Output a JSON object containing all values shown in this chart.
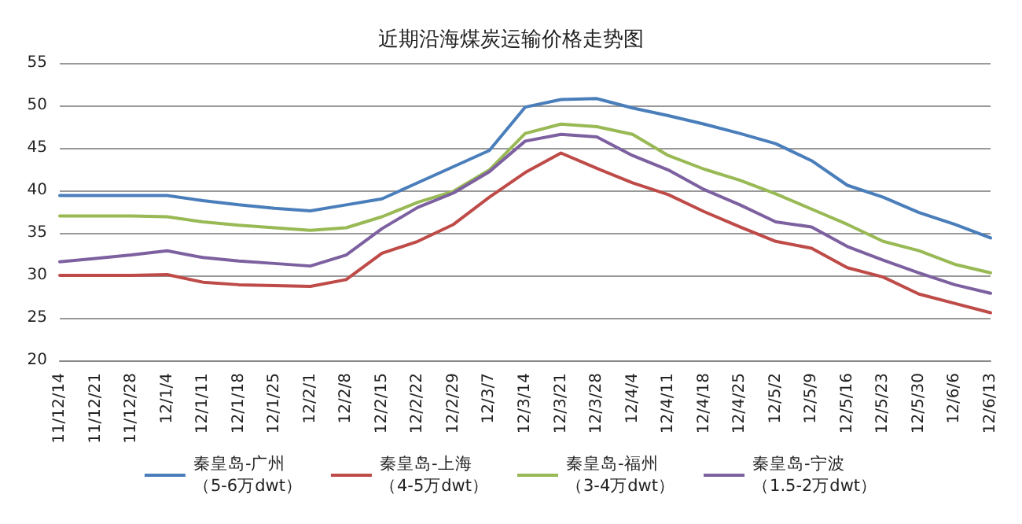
{
  "chart_data": {
    "type": "line",
    "title": "近期沿海煤炭运输价格走势图",
    "categories": [
      "11/12/14",
      "11/12/21",
      "11/12/28",
      "12/1/4",
      "12/1/11",
      "12/1/18",
      "12/1/25",
      "12/2/1",
      "12/2/8",
      "12/2/15",
      "12/2/22",
      "12/2/29",
      "12/3/7",
      "12/3/14",
      "12/3/21",
      "12/3/28",
      "12/4/4",
      "12/4/11",
      "12/4/18",
      "12/4/25",
      "12/5/2",
      "12/5/9",
      "12/5/16",
      "12/5/23",
      "12/5/30",
      "12/6/6",
      "12/6/13"
    ],
    "series": [
      {
        "name": "秦皇岛-广州（5-6万dwt）",
        "color": "#4a7ebb",
        "values": [
          39.4,
          39.4,
          39.4,
          39.4,
          38.8,
          38.3,
          37.9,
          37.6,
          38.3,
          39.0,
          40.9,
          42.8,
          44.7,
          49.8,
          50.7,
          50.8,
          49.7,
          48.8,
          47.8,
          46.7,
          45.5,
          43.5,
          40.6,
          39.2,
          37.4,
          36.0,
          34.4
        ]
      },
      {
        "name": "秦皇岛-上海（4-5万dwt）",
        "color": "#be4b48",
        "values": [
          30.0,
          30.0,
          30.0,
          30.1,
          29.2,
          28.9,
          28.8,
          28.7,
          29.5,
          32.6,
          34.0,
          36.0,
          39.2,
          42.1,
          44.4,
          42.6,
          40.9,
          39.5,
          37.5,
          35.7,
          34.0,
          33.2,
          30.9,
          29.8,
          27.8,
          26.7,
          25.6
        ]
      },
      {
        "name": "秦皇岛-福州（3-4万dwt）",
        "color": "#98b954",
        "values": [
          37.0,
          37.0,
          37.0,
          36.9,
          36.3,
          35.9,
          35.6,
          35.3,
          35.6,
          36.9,
          38.6,
          39.9,
          42.4,
          46.7,
          47.8,
          47.5,
          46.6,
          44.1,
          42.5,
          41.2,
          39.6,
          37.8,
          36.0,
          34.0,
          32.9,
          31.3,
          30.3
        ]
      },
      {
        "name": "秦皇岛-宁波（1.5-2万dwt）",
        "color": "#7d60a0",
        "values": [
          31.6,
          32.0,
          32.4,
          32.9,
          32.1,
          31.7,
          31.4,
          31.1,
          32.4,
          35.5,
          38.0,
          39.7,
          42.2,
          45.8,
          46.6,
          46.3,
          44.1,
          42.4,
          40.1,
          38.3,
          36.3,
          35.7,
          33.4,
          31.8,
          30.3,
          28.9,
          27.9
        ]
      }
    ],
    "ylim": [
      20,
      55
    ],
    "yticks": [
      20,
      25,
      30,
      35,
      40,
      45,
      50,
      55
    ],
    "grid": "y",
    "legend": "bottom",
    "marker": "none",
    "line_style": "solid"
  }
}
